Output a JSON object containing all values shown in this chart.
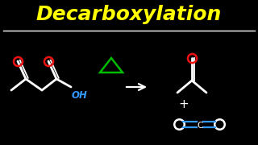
{
  "title": "Decarboxylation",
  "title_color": "#FFFF00",
  "title_fontsize": 18,
  "bg_color": "#000000",
  "line_color": "#FFFFFF",
  "red_color": "#EE1111",
  "blue_color": "#3399FF",
  "green_color": "#00BB00",
  "lw": 2.0,
  "lw_db": 1.3
}
